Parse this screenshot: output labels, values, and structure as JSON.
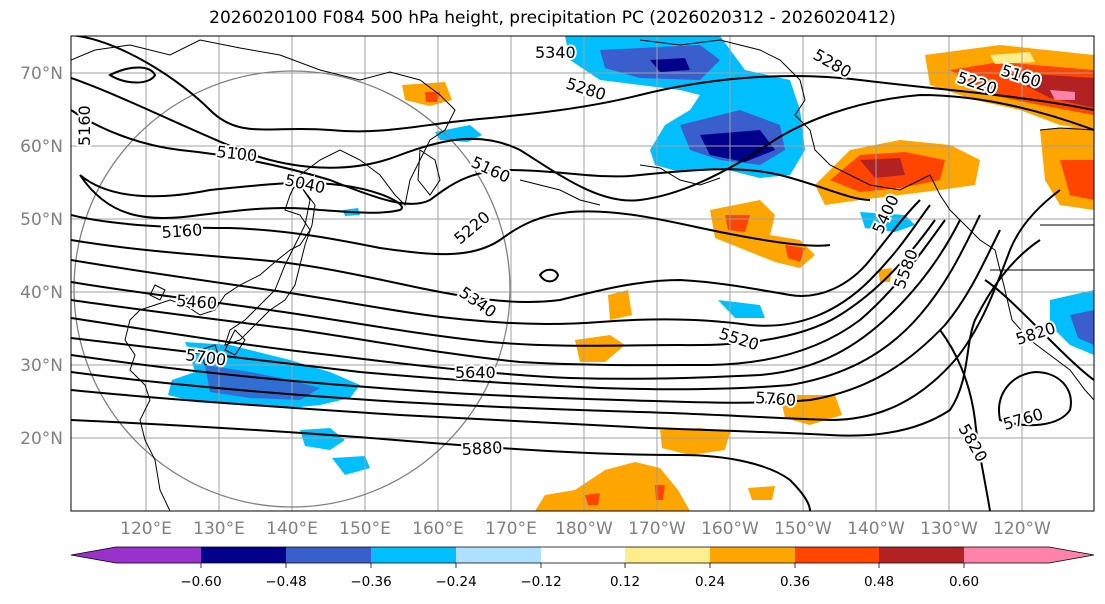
{
  "title": "2026020100 F084 500 hPa height, precipitation PC (2026020312 - 2026020412)",
  "lat_labels": [
    "70°N",
    "60°N",
    "50°N",
    "40°N",
    "30°N",
    "20°N"
  ],
  "lon_labels": [
    "120°E",
    "130°E",
    "140°E",
    "150°E",
    "160°E",
    "170°E",
    "180°W",
    "170°W",
    "160°W",
    "150°W",
    "140°W",
    "130°W",
    "120°W"
  ],
  "contour_labels": [
    "5340",
    "5280",
    "5280",
    "5220",
    "5160",
    "5160",
    "5160",
    "5100",
    "5040",
    "5220",
    "5160",
    "5400",
    "5460",
    "5340",
    "5580",
    "5520",
    "5700",
    "5640",
    "5760",
    "5820",
    "5760",
    "5880",
    "5820"
  ],
  "colorbar": {
    "colors": [
      "#9932CC",
      "#00008B",
      "#3A5FCD",
      "#00BFFF",
      "#B0E0FF",
      "#FFFFFF",
      "#FFEC8B",
      "#FFA500",
      "#FF4500",
      "#B22222",
      "#FF82AB"
    ],
    "tick_labels": [
      "−0.60",
      "−0.48",
      "−0.36",
      "−0.24",
      "−0.12",
      "0.12",
      "0.24",
      "0.36",
      "0.48",
      "0.60"
    ]
  },
  "colors": {
    "contour": "#000000",
    "grid": "#a0a0a0",
    "coastline": "#000000",
    "range_ring": "#808080"
  }
}
